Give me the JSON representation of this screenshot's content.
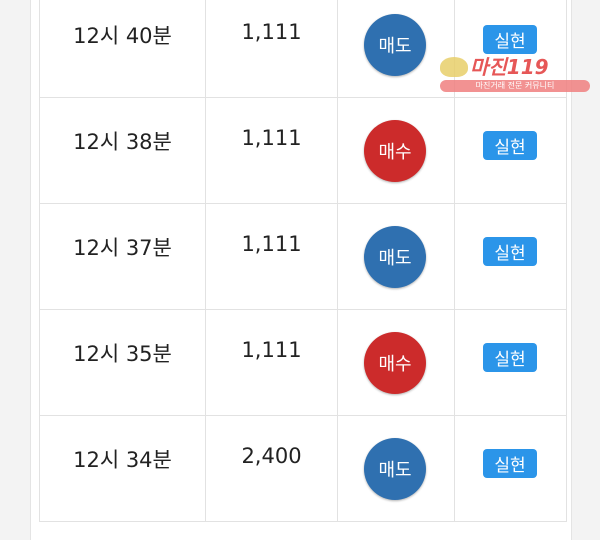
{
  "rows": [
    {
      "time": "12시 40분",
      "price": "1,111",
      "side": "매도",
      "side_type": "sell",
      "state": "실현"
    },
    {
      "time": "12시 38분",
      "price": "1,111",
      "side": "매수",
      "side_type": "buy",
      "state": "실현"
    },
    {
      "time": "12시 37분",
      "price": "1,111",
      "side": "매도",
      "side_type": "sell",
      "state": "실현"
    },
    {
      "time": "12시 35분",
      "price": "1,111",
      "side": "매수",
      "side_type": "buy",
      "state": "실현"
    },
    {
      "time": "12시 34분",
      "price": "2,400",
      "side": "매도",
      "side_type": "sell",
      "state": "실현"
    }
  ],
  "colors": {
    "sell": "#2f70b0",
    "buy": "#cc2b2b",
    "badge": "#2b95e9"
  },
  "watermark": {
    "title": "마진119",
    "subtitle": "마진거래 전문 커뮤니티"
  }
}
